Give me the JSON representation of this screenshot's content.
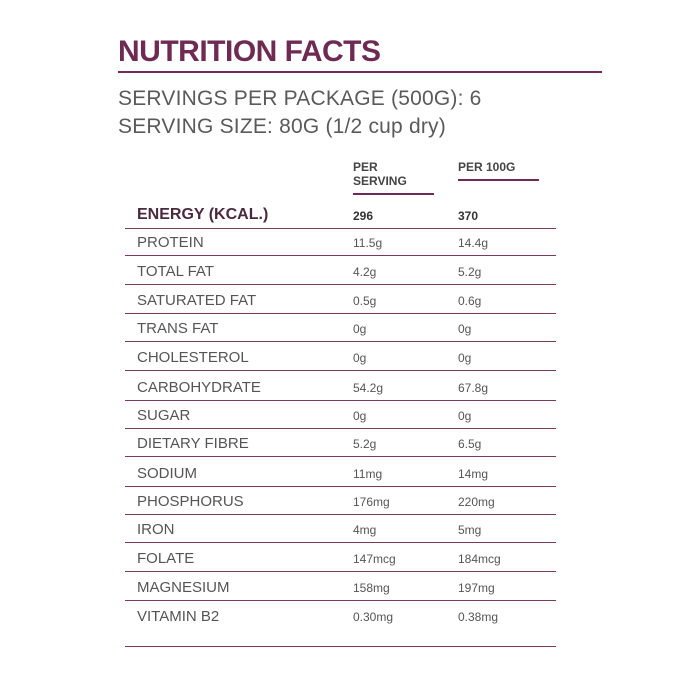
{
  "title": "NUTRITION FACTS",
  "servings_per_package": "SERVINGS PER PACKAGE (500G): 6",
  "serving_size": "SERVING SIZE: 80G (1/2 cup dry)",
  "columns": {
    "per_serving": "PER SERVING",
    "per_100g": "PER 100G"
  },
  "colors": {
    "accent": "#6e2a52",
    "text": "#555555"
  },
  "rows": [
    {
      "name": "ENERGY (KCAL.)",
      "per_serving": "296",
      "per_100g": "370"
    },
    {
      "name": "PROTEIN",
      "per_serving": "11.5g",
      "per_100g": "14.4g"
    },
    {
      "name": "TOTAL FAT",
      "per_serving": "4.2g",
      "per_100g": "5.2g"
    },
    {
      "name": "SATURATED FAT",
      "per_serving": "0.5g",
      "per_100g": "0.6g"
    },
    {
      "name": "TRANS FAT",
      "per_serving": "0g",
      "per_100g": "0g"
    },
    {
      "name": "CHOLESTEROL",
      "per_serving": "0g",
      "per_100g": "0g"
    },
    {
      "name": "CARBOHYDRATE",
      "per_serving": "54.2g",
      "per_100g": "67.8g"
    },
    {
      "name": "SUGAR",
      "per_serving": "0g",
      "per_100g": "0g"
    },
    {
      "name": "DIETARY FIBRE",
      "per_serving": "5.2g",
      "per_100g": "6.5g"
    },
    {
      "name": "SODIUM",
      "per_serving": "11mg",
      "per_100g": "14mg"
    },
    {
      "name": "PHOSPHORUS",
      "per_serving": "176mg",
      "per_100g": "220mg"
    },
    {
      "name": "IRON",
      "per_serving": "4mg",
      "per_100g": "5mg"
    },
    {
      "name": "FOLATE",
      "per_serving": "147mcg",
      "per_100g": "184mcg"
    },
    {
      "name": "MAGNESIUM",
      "per_serving": "158mg",
      "per_100g": "197mg"
    },
    {
      "name": "VITAMIN B2",
      "per_serving": "0.30mg",
      "per_100g": "0.38mg"
    }
  ]
}
